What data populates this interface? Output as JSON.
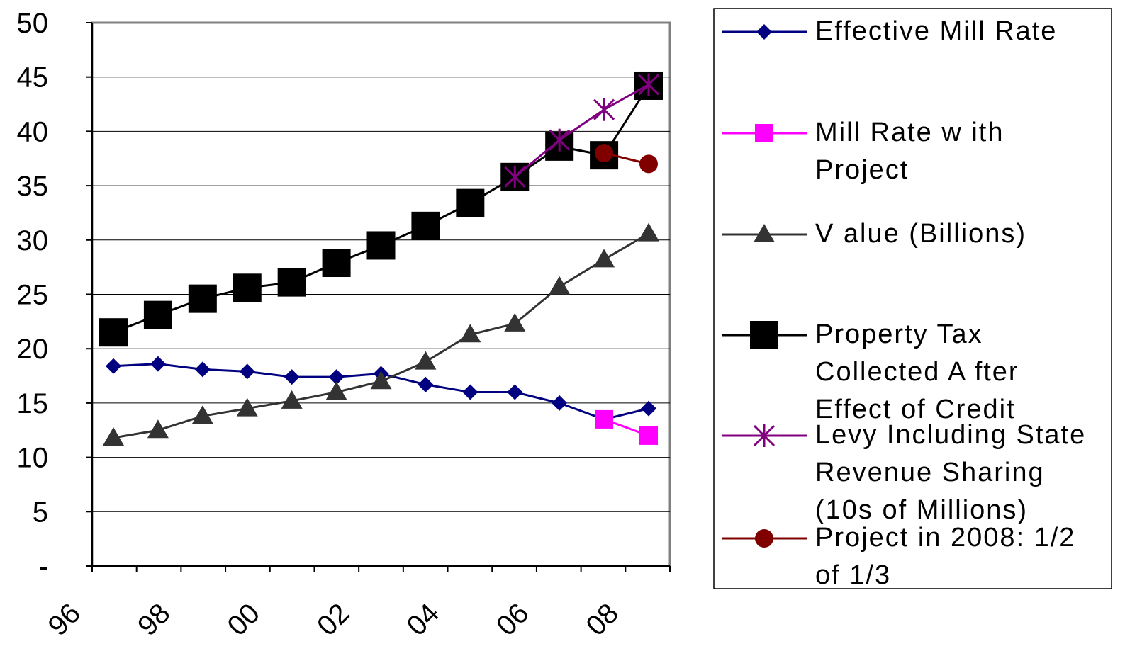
{
  "chart_data": {
    "type": "line",
    "x": [
      "1996",
      "1997",
      "1998",
      "1999",
      "2000",
      "2001",
      "2002",
      "2003",
      "2004",
      "2005",
      "2006",
      "2007",
      "2008"
    ],
    "x_tick_labels": [
      "96",
      "98",
      "00",
      "02",
      "04",
      "06",
      "08"
    ],
    "y_tick_labels": [
      "-",
      "5",
      "10",
      "15",
      "20",
      "25",
      "30",
      "35",
      "40",
      "45",
      "50"
    ],
    "ylim": [
      0,
      50
    ],
    "grid": "horizontal",
    "legend_position": "right",
    "series": [
      {
        "name": "Effective Mill Rate",
        "legend_lines": [
          "Effective Mill Rate"
        ],
        "color": "#000080",
        "marker": "diamond",
        "values": [
          18.4,
          18.6,
          18.1,
          17.9,
          17.4,
          17.4,
          17.7,
          16.7,
          16.0,
          16.0,
          15.0,
          13.5,
          14.5
        ]
      },
      {
        "name": "Mill Rate with Project",
        "legend_lines": [
          "Mill Rate w ith",
          "Project"
        ],
        "color": "#FF00FF",
        "marker": "square",
        "values": [
          null,
          null,
          null,
          null,
          null,
          null,
          null,
          null,
          null,
          null,
          null,
          13.5,
          12.0
        ]
      },
      {
        "name": "Value (Billions)",
        "legend_lines": [
          "V alue (Billions)"
        ],
        "color": "#333333",
        "marker": "triangle",
        "values": [
          11.8,
          12.5,
          13.8,
          14.5,
          15.2,
          16.0,
          17.0,
          18.8,
          21.3,
          22.3,
          25.7,
          28.2,
          30.6
        ]
      },
      {
        "name": "Property Tax Collected After Effect of Credit",
        "legend_lines": [
          "Property Tax",
          "Collected A fter",
          "Effect of Credit"
        ],
        "color": "#000000",
        "marker": "big-square",
        "values": [
          21.5,
          23.1,
          24.6,
          25.6,
          26.1,
          27.9,
          29.5,
          31.3,
          33.4,
          35.8,
          38.6,
          37.8,
          44.2
        ]
      },
      {
        "name": "Levy Including State Revenue Sharing (10s of Millions)",
        "legend_lines": [
          "Levy Including State",
          "Revenue Sharing",
          "(10s of Millions)"
        ],
        "color": "#800080",
        "marker": "star",
        "values": [
          null,
          null,
          null,
          null,
          null,
          null,
          null,
          null,
          null,
          35.8,
          39.2,
          42.0,
          44.3
        ]
      },
      {
        "name": "Project in 2008: 1/2 of 1/3",
        "legend_lines": [
          "Project in 2008: 1/2",
          "of 1/3"
        ],
        "color": "#800000",
        "marker": "circle",
        "values": [
          null,
          null,
          null,
          null,
          null,
          null,
          null,
          null,
          null,
          null,
          null,
          38.0,
          37.0
        ]
      }
    ]
  }
}
